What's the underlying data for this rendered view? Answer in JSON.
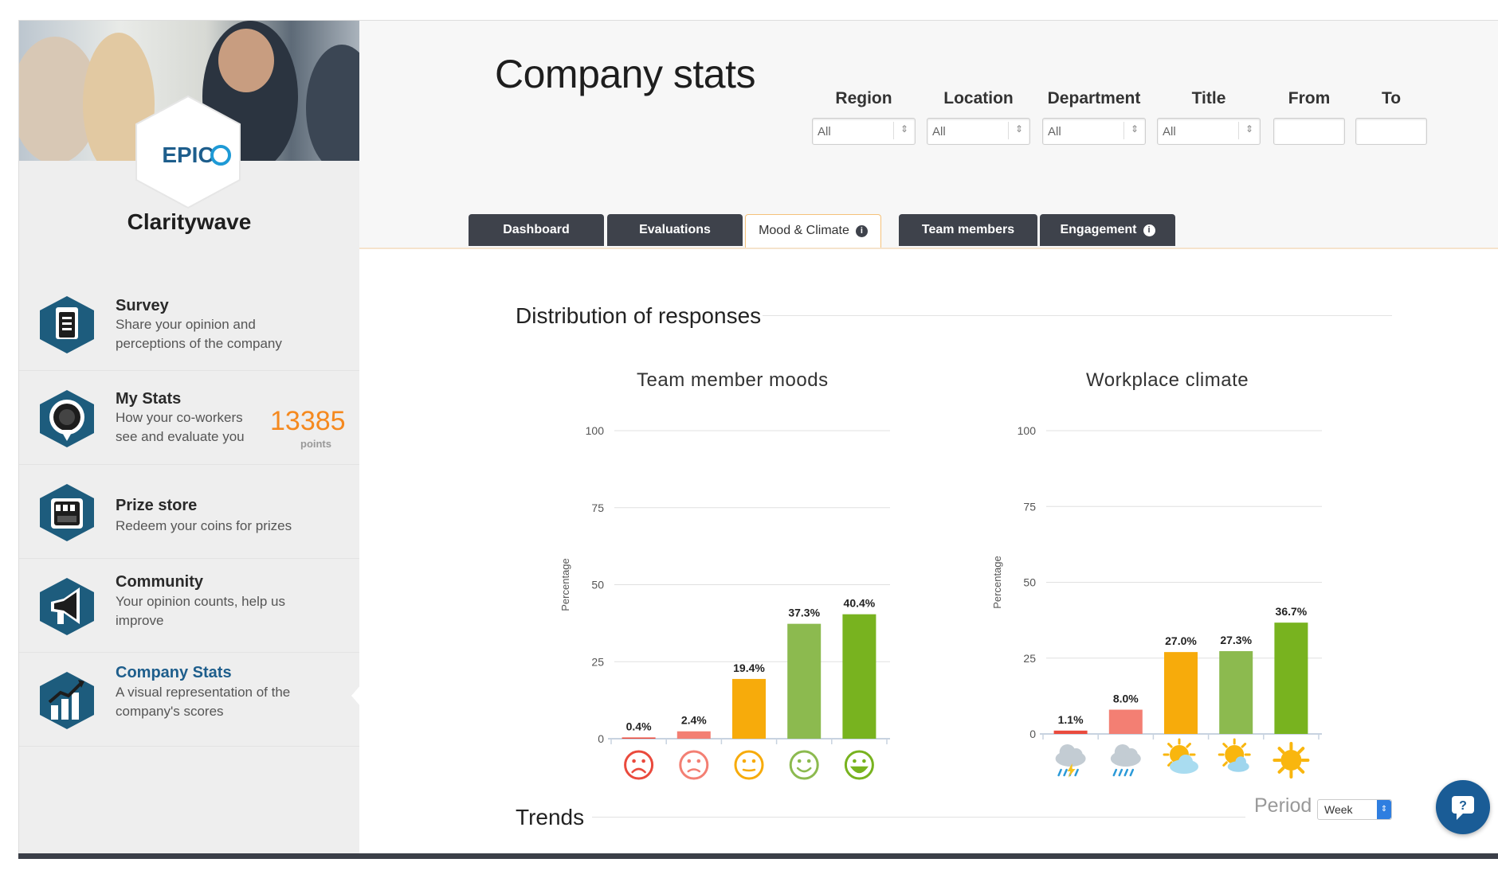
{
  "brand": {
    "logo_text": "EPIC",
    "company": "Claritywave"
  },
  "sidebar": {
    "items": [
      {
        "title": "Survey",
        "desc": "Share your opinion and perceptions of the company",
        "icon": "survey-icon"
      },
      {
        "title": "My Stats",
        "desc": "How your co-workers see and evaluate you",
        "icon": "medal-icon",
        "points": "13385",
        "points_label": "points"
      },
      {
        "title": "Prize store",
        "desc": "Redeem your coins for prizes",
        "icon": "store-icon"
      },
      {
        "title": "Community",
        "desc": "Your opinion counts, help us improve",
        "icon": "megaphone-icon"
      },
      {
        "title": "Company Stats",
        "desc": "A visual representation of the company's scores",
        "icon": "chart-icon",
        "active": true
      }
    ]
  },
  "header": {
    "title": "Company stats",
    "filters": [
      {
        "label": "Region",
        "value": "All"
      },
      {
        "label": "Location",
        "value": "All"
      },
      {
        "label": "Department",
        "value": "All"
      },
      {
        "label": "Title",
        "value": "All"
      },
      {
        "label": "From",
        "value": ""
      },
      {
        "label": "To",
        "value": ""
      }
    ]
  },
  "tabs": [
    {
      "label": "Dashboard"
    },
    {
      "label": "Evaluations"
    },
    {
      "label": "Mood & Climate",
      "active": true,
      "info": true
    },
    {
      "label": "Team members"
    },
    {
      "label": "Engagement",
      "info": true
    }
  ],
  "sections": {
    "distribution": "Distribution of responses",
    "trends": "Trends",
    "period_label": "Period",
    "period_value": "Week"
  },
  "colors": {
    "very_bad": "#ea4a3d",
    "bad": "#f37f73",
    "neutral": "#f7ab0b",
    "good": "#8cba4f",
    "very_good": "#78b31f",
    "accent_orange": "#f5891f",
    "dark_tab": "#3e424b",
    "chat_blue": "#1a5c96"
  },
  "chart_data": [
    {
      "type": "bar",
      "title": "Team member moods",
      "ylabel": "Percentage",
      "ylim": [
        0,
        100
      ],
      "yticks": [
        0,
        25,
        50,
        75,
        100
      ],
      "categories": [
        "very-sad-face",
        "sad-face",
        "neutral-face",
        "smile-face",
        "big-smile-face"
      ],
      "values": [
        0.4,
        2.4,
        19.4,
        37.3,
        40.4
      ],
      "labels": [
        "0.4%",
        "2.4%",
        "19.4%",
        "37.3%",
        "40.4%"
      ],
      "colors": [
        "#ea4a3d",
        "#f37f73",
        "#f7ab0b",
        "#8cba4f",
        "#78b31f"
      ]
    },
    {
      "type": "bar",
      "title": "Workplace climate",
      "ylabel": "Percentage",
      "ylim": [
        0,
        100
      ],
      "yticks": [
        0,
        25,
        50,
        75,
        100
      ],
      "categories": [
        "storm-icon",
        "rain-icon",
        "cloudy-sun-icon",
        "partly-sunny-icon",
        "sunny-icon"
      ],
      "values": [
        1.1,
        8.0,
        27.0,
        27.3,
        36.7
      ],
      "labels": [
        "1.1%",
        "8.0%",
        "27.0%",
        "27.3%",
        "36.7%"
      ],
      "colors": [
        "#ea4a3d",
        "#f37f73",
        "#f7ab0b",
        "#8cba4f",
        "#78b31f"
      ]
    }
  ]
}
